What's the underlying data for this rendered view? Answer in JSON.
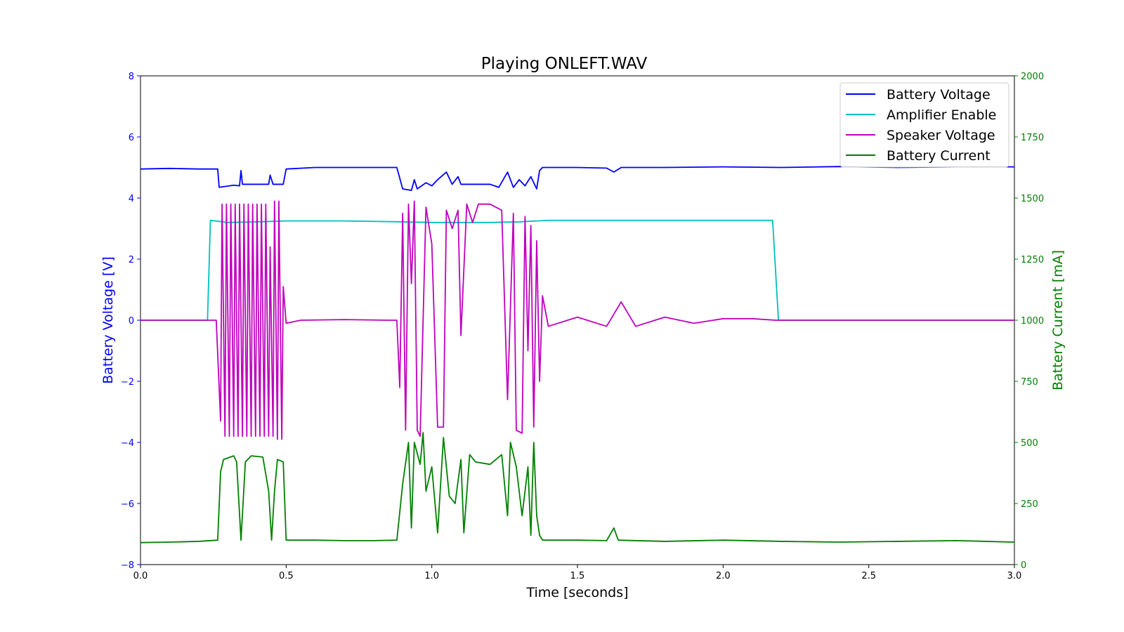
{
  "chart_data": {
    "type": "line",
    "title": "Playing ONLEFT.WAV",
    "xlabel": "Time [seconds]",
    "ylabel_left": "Battery Voltage [V]",
    "ylabel_right": "Battery Current [mA]",
    "xlim": [
      0,
      3.0
    ],
    "ylim_left": [
      -8,
      8
    ],
    "ylim_right": [
      0,
      2000
    ],
    "x_ticks": [
      "0.0",
      "0.5",
      "1.0",
      "1.5",
      "2.0",
      "2.5",
      "3.0"
    ],
    "y_left_ticks": [
      "8",
      "6",
      "4",
      "2",
      "0",
      "−2",
      "−4",
      "−6",
      "−8"
    ],
    "y_right_ticks": [
      "2000",
      "1750",
      "1500",
      "1250",
      "1000",
      "750",
      "500",
      "250",
      "0"
    ],
    "grid": false,
    "legend_position": "top-right",
    "colors": {
      "left_axis": "#0000ff",
      "right_axis": "#008000",
      "battery_voltage": "#0000ff",
      "amplifier_enable": "#00bfbf",
      "speaker_voltage": "#bf00bf",
      "battery_current": "#008000"
    },
    "series": [
      {
        "name": "Battery Voltage",
        "axis": "left",
        "color": "#0000ff",
        "points": [
          [
            0,
            4.95
          ],
          [
            0.1,
            4.97
          ],
          [
            0.2,
            4.95
          ],
          [
            0.265,
            4.95
          ],
          [
            0.27,
            4.35
          ],
          [
            0.32,
            4.42
          ],
          [
            0.34,
            4.4
          ],
          [
            0.345,
            4.9
          ],
          [
            0.35,
            4.45
          ],
          [
            0.44,
            4.45
          ],
          [
            0.445,
            4.75
          ],
          [
            0.455,
            4.45
          ],
          [
            0.49,
            4.45
          ],
          [
            0.5,
            4.95
          ],
          [
            0.6,
            5.0
          ],
          [
            0.7,
            5.0
          ],
          [
            0.8,
            5.0
          ],
          [
            0.88,
            5.0
          ],
          [
            0.9,
            4.3
          ],
          [
            0.93,
            4.25
          ],
          [
            0.94,
            4.6
          ],
          [
            0.95,
            4.3
          ],
          [
            0.98,
            4.5
          ],
          [
            1.0,
            4.4
          ],
          [
            1.02,
            4.6
          ],
          [
            1.05,
            4.85
          ],
          [
            1.07,
            4.45
          ],
          [
            1.09,
            4.7
          ],
          [
            1.1,
            4.45
          ],
          [
            1.2,
            4.45
          ],
          [
            1.23,
            4.35
          ],
          [
            1.26,
            4.85
          ],
          [
            1.28,
            4.35
          ],
          [
            1.3,
            4.6
          ],
          [
            1.32,
            4.4
          ],
          [
            1.34,
            4.7
          ],
          [
            1.36,
            4.3
          ],
          [
            1.37,
            4.9
          ],
          [
            1.38,
            5.0
          ],
          [
            1.5,
            5.0
          ],
          [
            1.6,
            4.98
          ],
          [
            1.625,
            4.85
          ],
          [
            1.65,
            5.0
          ],
          [
            1.8,
            5.0
          ],
          [
            2.0,
            5.02
          ],
          [
            2.2,
            5.0
          ],
          [
            2.4,
            5.03
          ],
          [
            2.6,
            5.0
          ],
          [
            2.8,
            5.02
          ],
          [
            3.0,
            5.02
          ]
        ]
      },
      {
        "name": "Amplifier Enable",
        "axis": "left",
        "color": "#00bfbf",
        "points": [
          [
            0,
            0
          ],
          [
            0.23,
            0
          ],
          [
            0.24,
            3.27
          ],
          [
            0.3,
            3.2
          ],
          [
            0.4,
            3.22
          ],
          [
            0.5,
            3.25
          ],
          [
            0.7,
            3.25
          ],
          [
            0.9,
            3.22
          ],
          [
            1.0,
            3.2
          ],
          [
            1.2,
            3.2
          ],
          [
            1.3,
            3.22
          ],
          [
            1.4,
            3.27
          ],
          [
            1.6,
            3.27
          ],
          [
            2.0,
            3.27
          ],
          [
            2.17,
            3.27
          ],
          [
            2.19,
            0
          ],
          [
            3.0,
            0
          ]
        ]
      },
      {
        "name": "Speaker Voltage",
        "axis": "left",
        "color": "#bf00bf",
        "points": [
          [
            0,
            0
          ],
          [
            0.26,
            0
          ],
          [
            0.275,
            -3.3
          ],
          [
            0.28,
            3.8
          ],
          [
            0.29,
            -3.8
          ],
          [
            0.295,
            3.8
          ],
          [
            0.305,
            -3.8
          ],
          [
            0.31,
            3.8
          ],
          [
            0.32,
            -3.8
          ],
          [
            0.325,
            3.8
          ],
          [
            0.335,
            -3.8
          ],
          [
            0.34,
            3.8
          ],
          [
            0.35,
            -3.8
          ],
          [
            0.355,
            3.8
          ],
          [
            0.365,
            -3.8
          ],
          [
            0.37,
            3.8
          ],
          [
            0.38,
            -3.8
          ],
          [
            0.385,
            3.8
          ],
          [
            0.395,
            -3.8
          ],
          [
            0.4,
            3.8
          ],
          [
            0.41,
            -3.8
          ],
          [
            0.415,
            3.8
          ],
          [
            0.425,
            -3.8
          ],
          [
            0.43,
            3.8
          ],
          [
            0.44,
            -3.8
          ],
          [
            0.445,
            2.4
          ],
          [
            0.455,
            -3.8
          ],
          [
            0.46,
            3.9
          ],
          [
            0.47,
            -3.9
          ],
          [
            0.475,
            3.9
          ],
          [
            0.485,
            -3.9
          ],
          [
            0.49,
            1.1
          ],
          [
            0.5,
            -0.1
          ],
          [
            0.55,
            0
          ],
          [
            0.7,
            0.02
          ],
          [
            0.85,
            0
          ],
          [
            0.88,
            0
          ],
          [
            0.89,
            -2.2
          ],
          [
            0.9,
            3.5
          ],
          [
            0.91,
            -3.6
          ],
          [
            0.92,
            3.8
          ],
          [
            0.93,
            1.2
          ],
          [
            0.94,
            3.9
          ],
          [
            0.95,
            -3.6
          ],
          [
            0.96,
            -3.8
          ],
          [
            0.98,
            3.7
          ],
          [
            1.0,
            2.5
          ],
          [
            1.02,
            -3.5
          ],
          [
            1.04,
            -3.5
          ],
          [
            1.05,
            3.6
          ],
          [
            1.07,
            3.0
          ],
          [
            1.09,
            3.6
          ],
          [
            1.1,
            -0.5
          ],
          [
            1.12,
            3.8
          ],
          [
            1.14,
            3.2
          ],
          [
            1.16,
            3.8
          ],
          [
            1.2,
            3.8
          ],
          [
            1.24,
            3.6
          ],
          [
            1.26,
            -2.6
          ],
          [
            1.28,
            3.5
          ],
          [
            1.29,
            -3.6
          ],
          [
            1.31,
            -3.7
          ],
          [
            1.32,
            3.4
          ],
          [
            1.33,
            -1.0
          ],
          [
            1.34,
            3.1
          ],
          [
            1.35,
            -3.5
          ],
          [
            1.36,
            2.6
          ],
          [
            1.37,
            -2.0
          ],
          [
            1.38,
            0.8
          ],
          [
            1.4,
            -0.2
          ],
          [
            1.5,
            0.1
          ],
          [
            1.6,
            -0.2
          ],
          [
            1.65,
            0.6
          ],
          [
            1.7,
            -0.2
          ],
          [
            1.8,
            0.1
          ],
          [
            1.9,
            -0.1
          ],
          [
            2.0,
            0.05
          ],
          [
            2.1,
            0.05
          ],
          [
            2.18,
            0
          ],
          [
            3.0,
            0
          ]
        ]
      },
      {
        "name": "Battery Current",
        "axis": "right",
        "color": "#008000",
        "points": [
          [
            0,
            90
          ],
          [
            0.1,
            92
          ],
          [
            0.2,
            95
          ],
          [
            0.265,
            100
          ],
          [
            0.275,
            380
          ],
          [
            0.285,
            430
          ],
          [
            0.32,
            445
          ],
          [
            0.33,
            420
          ],
          [
            0.345,
            100
          ],
          [
            0.36,
            420
          ],
          [
            0.38,
            445
          ],
          [
            0.42,
            440
          ],
          [
            0.44,
            300
          ],
          [
            0.45,
            100
          ],
          [
            0.46,
            300
          ],
          [
            0.47,
            430
          ],
          [
            0.49,
            420
          ],
          [
            0.5,
            100
          ],
          [
            0.6,
            100
          ],
          [
            0.7,
            98
          ],
          [
            0.8,
            98
          ],
          [
            0.88,
            100
          ],
          [
            0.9,
            330
          ],
          [
            0.92,
            500
          ],
          [
            0.93,
            150
          ],
          [
            0.94,
            500
          ],
          [
            0.96,
            410
          ],
          [
            0.97,
            540
          ],
          [
            0.98,
            300
          ],
          [
            1.0,
            400
          ],
          [
            1.02,
            130
          ],
          [
            1.04,
            520
          ],
          [
            1.06,
            280
          ],
          [
            1.08,
            250
          ],
          [
            1.1,
            430
          ],
          [
            1.11,
            130
          ],
          [
            1.13,
            450
          ],
          [
            1.15,
            420
          ],
          [
            1.2,
            410
          ],
          [
            1.24,
            450
          ],
          [
            1.26,
            200
          ],
          [
            1.27,
            500
          ],
          [
            1.29,
            400
          ],
          [
            1.31,
            200
          ],
          [
            1.33,
            400
          ],
          [
            1.34,
            120
          ],
          [
            1.35,
            500
          ],
          [
            1.36,
            200
          ],
          [
            1.37,
            120
          ],
          [
            1.38,
            100
          ],
          [
            1.5,
            100
          ],
          [
            1.6,
            98
          ],
          [
            1.625,
            150
          ],
          [
            1.64,
            100
          ],
          [
            1.8,
            95
          ],
          [
            2.0,
            100
          ],
          [
            2.2,
            95
          ],
          [
            2.4,
            92
          ],
          [
            2.6,
            95
          ],
          [
            2.8,
            98
          ],
          [
            3.0,
            92
          ]
        ]
      }
    ]
  }
}
